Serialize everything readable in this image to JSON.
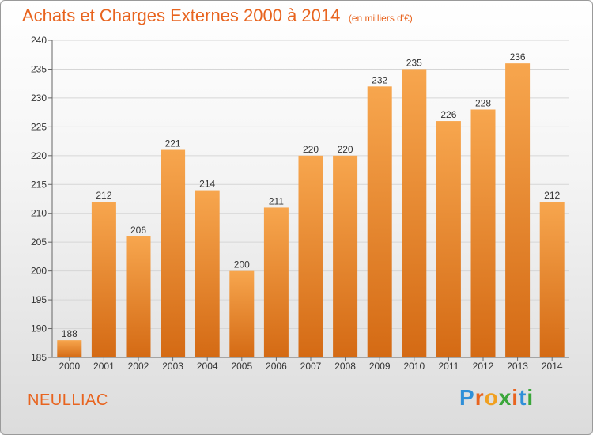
{
  "title": "Achats et Charges Externes 2000 à 2014",
  "subtitle": "(en milliers d'€)",
  "commune": "NEULLIAC",
  "logo": {
    "letters": [
      "P",
      "r",
      "o",
      "x",
      "i",
      "t",
      "i"
    ],
    "colors": [
      "#2f8fd8",
      "#e8641f",
      "#f0a020",
      "#3aa63a",
      "#e8641f",
      "#2f8fd8",
      "#3aa63a"
    ]
  },
  "colors": {
    "bar": "#f0913a",
    "bar_dark": "#d46a14",
    "accent": "#e8641f"
  },
  "chart_data": {
    "type": "bar",
    "categories": [
      "2000",
      "2001",
      "2002",
      "2003",
      "2004",
      "2005",
      "2006",
      "2007",
      "2008",
      "2009",
      "2010",
      "2011",
      "2012",
      "2013",
      "2014"
    ],
    "values": [
      188,
      212,
      206,
      221,
      214,
      200,
      211,
      220,
      220,
      232,
      235,
      226,
      228,
      236,
      212
    ],
    "ylim": [
      185,
      240
    ],
    "yticks": [
      185,
      190,
      195,
      200,
      205,
      210,
      215,
      220,
      225,
      230,
      235,
      240
    ],
    "title": "Achats et Charges Externes 2000 à 2014",
    "xlabel": "",
    "ylabel": "",
    "grid": true
  }
}
